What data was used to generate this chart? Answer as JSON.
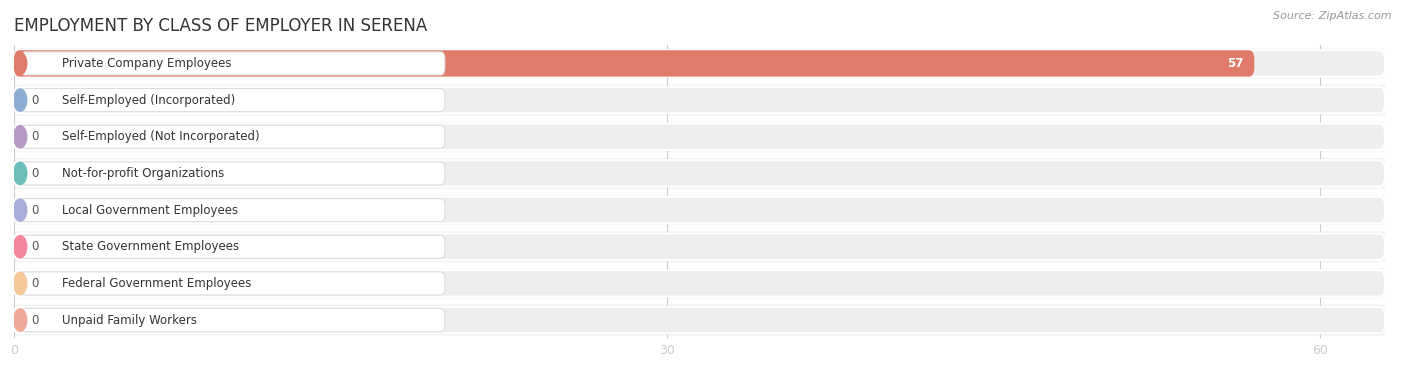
{
  "title": "EMPLOYMENT BY CLASS OF EMPLOYER IN SERENA",
  "source": "Source: ZipAtlas.com",
  "categories": [
    "Private Company Employees",
    "Self-Employed (Incorporated)",
    "Self-Employed (Not Incorporated)",
    "Not-for-profit Organizations",
    "Local Government Employees",
    "State Government Employees",
    "Federal Government Employees",
    "Unpaid Family Workers"
  ],
  "values": [
    57,
    0,
    0,
    0,
    0,
    0,
    0,
    0
  ],
  "bar_colors": [
    "#E07B6A",
    "#8EADD4",
    "#B89AC8",
    "#6BBFB8",
    "#A8AEDC",
    "#F4879C",
    "#F5C89A",
    "#EFA898"
  ],
  "bar_bg_color": "#eeeeee",
  "row_bg_even": "#f9f9f9",
  "row_bg_odd": "#f2f2f2",
  "xlim_max": 63,
  "xticks": [
    0,
    30,
    60
  ],
  "background_color": "#ffffff",
  "title_fontsize": 12,
  "label_fontsize": 8.5,
  "value_fontsize": 8.5,
  "source_fontsize": 8
}
